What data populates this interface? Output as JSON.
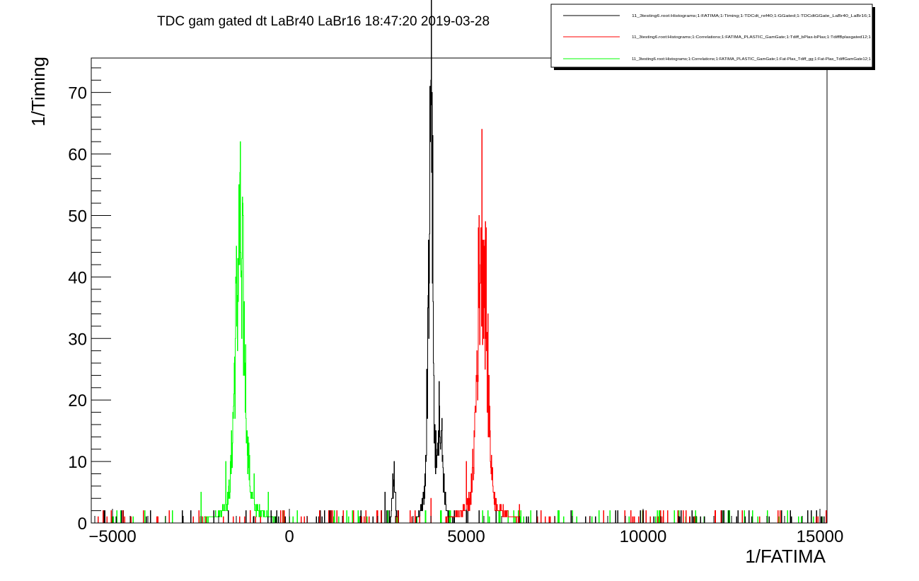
{
  "chart_data": {
    "type": "line",
    "title": "TDC gam gated dt LaBr40 LaBr16  18:47:20  2019-03-28",
    "xlabel": "1/FATIMA",
    "ylabel": "1/Timing",
    "xlim": [
      -5600,
      15200
    ],
    "ylim": [
      0,
      75.6
    ],
    "x_ticks": [
      -5000,
      0,
      5000,
      10000,
      15000
    ],
    "x_tick_labels": [
      "−5000",
      "0",
      "5000",
      "10000",
      "15000"
    ],
    "y_ticks": [
      0,
      10,
      20,
      30,
      40,
      50,
      60,
      70
    ],
    "y_tick_labels": [
      "0",
      "10",
      "20",
      "30",
      "40",
      "50",
      "60",
      "70"
    ],
    "grid": false,
    "legend_position": "top-right",
    "series": [
      {
        "name": "11_3testing6.root:Histograms;1:FATIMA;1:Timing;1:TDCdt_ref40;1:GGated;1:TDCdtGGate_LaBr40_LaBr16;1",
        "color": "#000000",
        "peaks": [
          {
            "center": 4000,
            "height": 72,
            "width": 45
          },
          {
            "center": 4250,
            "height": 14,
            "width": 80
          },
          {
            "center": 3900,
            "height": 17,
            "width": 25
          },
          {
            "center": 2950,
            "height": 7,
            "width": 40
          }
        ],
        "points": [
          [
            2700,
            5
          ],
          [
            2950,
            7
          ],
          [
            3000,
            5
          ],
          [
            3900,
            17
          ],
          [
            3980,
            62
          ],
          [
            4000,
            72
          ],
          [
            4020,
            57
          ],
          [
            4250,
            14
          ],
          [
            4400,
            5
          ],
          [
            5000,
            2
          ],
          [
            10000,
            2
          ],
          [
            14900,
            2
          ]
        ]
      },
      {
        "name": "11_3testing6.root:Histograms;1:Correlations;1:FATIMA_PLASTIC_GamGate;1:Tdiff_bPlas-bPlas;1:TdiffBplasgated12;1",
        "color": "#ff0000",
        "peaks": [
          {
            "center": 5450,
            "height": 45,
            "width": 130
          }
        ],
        "points": [
          [
            4000,
            4
          ],
          [
            5000,
            10
          ],
          [
            5300,
            28
          ],
          [
            5420,
            40
          ],
          [
            5450,
            45
          ],
          [
            5500,
            35
          ],
          [
            5600,
            18
          ],
          [
            5800,
            5
          ],
          [
            6500,
            3
          ],
          [
            7500,
            1
          ]
        ]
      },
      {
        "name": "11_3testing6.root:Histograms;1:Correlations;1:FATIMA_PLASTIC_GamGate;1:Fat-Plas_Tdiff_gg;1:Fat-Plas_TdiffGamGate12;1",
        "color": "#00ff00",
        "peaks": [
          {
            "center": -1400,
            "height": 42,
            "width": 130
          }
        ],
        "points": [
          [
            -2500,
            5
          ],
          [
            -1800,
            10
          ],
          [
            -1550,
            27
          ],
          [
            -1420,
            42
          ],
          [
            -1350,
            30
          ],
          [
            -1200,
            15
          ],
          [
            -1000,
            8
          ],
          [
            -600,
            5
          ],
          [
            0,
            1
          ]
        ]
      }
    ]
  }
}
